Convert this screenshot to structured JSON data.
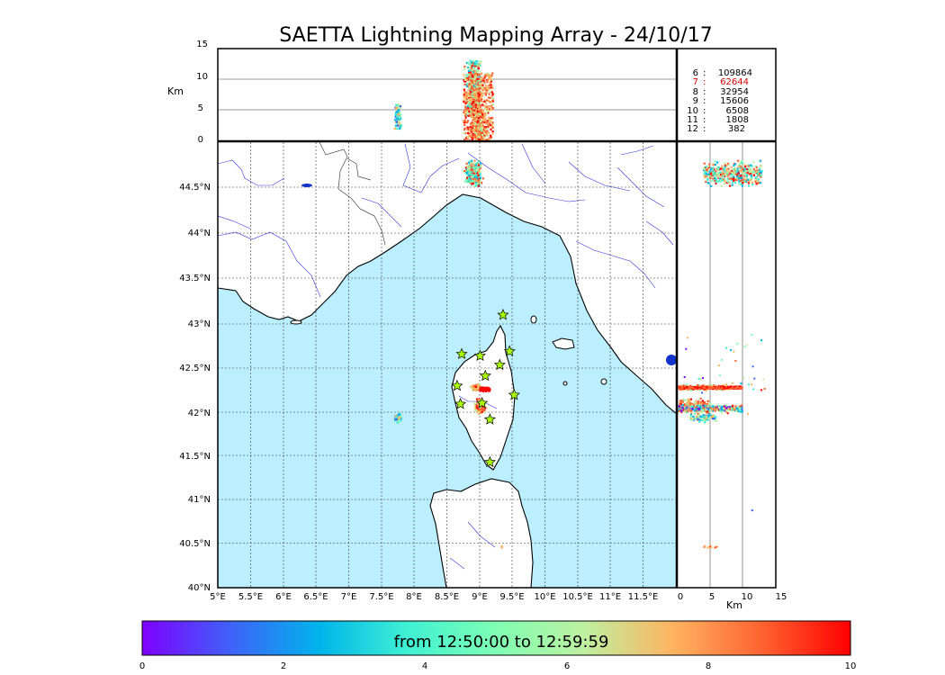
{
  "title": "SAETTA Lightning Mapping Array - 24/10/17",
  "altitude_panel": {
    "unit_label": "Km",
    "y_ticks": [
      "0",
      "5",
      "10",
      "15"
    ]
  },
  "legend_counts": [
    {
      "stations": "6",
      "count": "109864",
      "color": "#000000"
    },
    {
      "stations": "7",
      "count": "62644",
      "color": "#dd0000"
    },
    {
      "stations": "8",
      "count": "32954",
      "color": "#000000"
    },
    {
      "stations": "9",
      "count": "15606",
      "color": "#000000"
    },
    {
      "stations": "10",
      "count": "6508",
      "color": "#000000"
    },
    {
      "stations": "11",
      "count": "1808",
      "color": "#000000"
    },
    {
      "stations": "12",
      "count": "382",
      "color": "#000000"
    }
  ],
  "map": {
    "lon_ticks": [
      "5°E",
      "5.5°E",
      "6°E",
      "6.5°E",
      "7°E",
      "7.5°E",
      "8°E",
      "8.5°E",
      "9°E",
      "9.5°E",
      "10°E",
      "10.5°E",
      "11°E",
      "11.5°E"
    ],
    "lat_ticks": [
      "40°N",
      "40.5°N",
      "41°N",
      "41.5°N",
      "42°N",
      "42.5°N",
      "43°N",
      "43.5°N",
      "44°N",
      "44.5°N"
    ],
    "sea_color": "#bbefff",
    "coast_color": "#000000",
    "river_color": "#3333dd",
    "station_color": "#aaff00"
  },
  "side_panel": {
    "unit_label": "Km",
    "x_ticks": [
      "0",
      "5",
      "10",
      "15"
    ]
  },
  "colorbar": {
    "label": "from 12:50:00 to 12:59:59",
    "ticks": [
      "0",
      "2",
      "4",
      "6",
      "8",
      "10"
    ],
    "colors": [
      "#7f00ff",
      "#3f62f9",
      "#00b4eb",
      "#3ff1d3",
      "#7ffeb3",
      "#bef0a0",
      "#ffb360",
      "#ff6230",
      "#ff0000"
    ]
  },
  "chart_data": {
    "type": "scatter",
    "title": "SAETTA Lightning Mapping Array - 24/10/17",
    "xlabel": "",
    "ylabel": "",
    "xlim": [
      5,
      12
    ],
    "ylim": [
      40,
      44.9
    ],
    "altitude_range_km": [
      0,
      15
    ],
    "color_scale_minutes": [
      0,
      10
    ],
    "series": [
      {
        "lon": 8.9,
        "lat": 44.55,
        "alt_km": [
          4,
          13
        ],
        "minutes": [
          2,
          10
        ]
      },
      {
        "lon": 7.75,
        "lat": 41.87,
        "alt_km": [
          2,
          6
        ],
        "minutes": [
          1,
          8
        ]
      },
      {
        "lon": 9.0,
        "lat": 42.0,
        "alt_km": [
          0.3,
          5
        ],
        "minutes": [
          6,
          10
        ]
      },
      {
        "lon": 9.0,
        "lat": 42.2,
        "alt_km": [
          0.2,
          8
        ],
        "minutes": [
          5,
          10
        ]
      }
    ]
  }
}
